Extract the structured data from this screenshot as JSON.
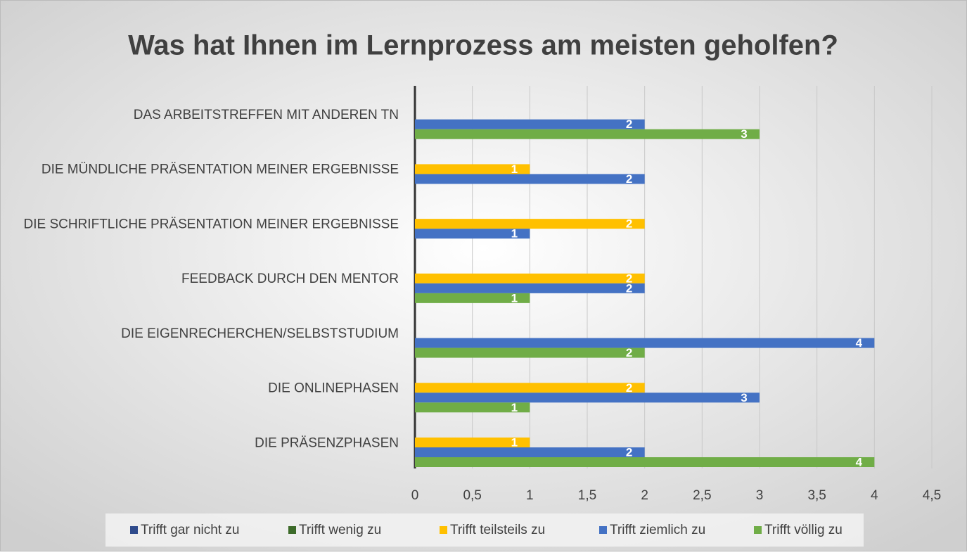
{
  "chart_data": {
    "type": "hbar",
    "title": "Was hat Ihnen im Lernprozess am meisten geholfen?",
    "categories": [
      "DAS ARBEITSTREFFEN MIT ANDEREN TN",
      "DIE MÜNDLICHE PRÄSENTATION MEINER ERGEBNISSE",
      "DIE SCHRIFTLICHE PRÄSENTATION MEINER ERGEBNISSE",
      "FEEDBACK DURCH DEN MENTOR",
      "DIE EIGENRECHERCHEN/SELBSTSTUDIUM",
      "DIE ONLINEPHASEN",
      "DIE PRÄSENZPHASEN"
    ],
    "series": [
      {
        "name": "Trifft gar nicht zu",
        "color": "#2f4b8c",
        "values": [
          null,
          null,
          null,
          null,
          null,
          null,
          null
        ]
      },
      {
        "name": "Trifft wenig zu",
        "color": "#3d6b2a",
        "values": [
          null,
          null,
          null,
          null,
          null,
          null,
          null
        ]
      },
      {
        "name": "Trifft teilsteils zu",
        "color": "#ffc000",
        "values": [
          null,
          1,
          2,
          2,
          null,
          2,
          1
        ]
      },
      {
        "name": "Trifft ziemlich zu",
        "color": "#4472c4",
        "values": [
          2,
          2,
          1,
          2,
          4,
          3,
          2
        ]
      },
      {
        "name": "Trifft völlig zu",
        "color": "#70ad47",
        "values": [
          3,
          null,
          null,
          1,
          2,
          1,
          4
        ]
      }
    ],
    "xlim": [
      0,
      4.5
    ],
    "xticks": [
      0,
      {
        "value": 0.5,
        "label": "0,5"
      },
      1,
      {
        "value": 1.5,
        "label": "1,5"
      },
      2,
      {
        "value": 2.5,
        "label": "2,5"
      },
      3,
      {
        "value": 3.5,
        "label": "3,5"
      },
      4,
      {
        "value": 4.5,
        "label": "4,5"
      }
    ],
    "grid": true,
    "legend": "bottom",
    "data_labels": true
  }
}
